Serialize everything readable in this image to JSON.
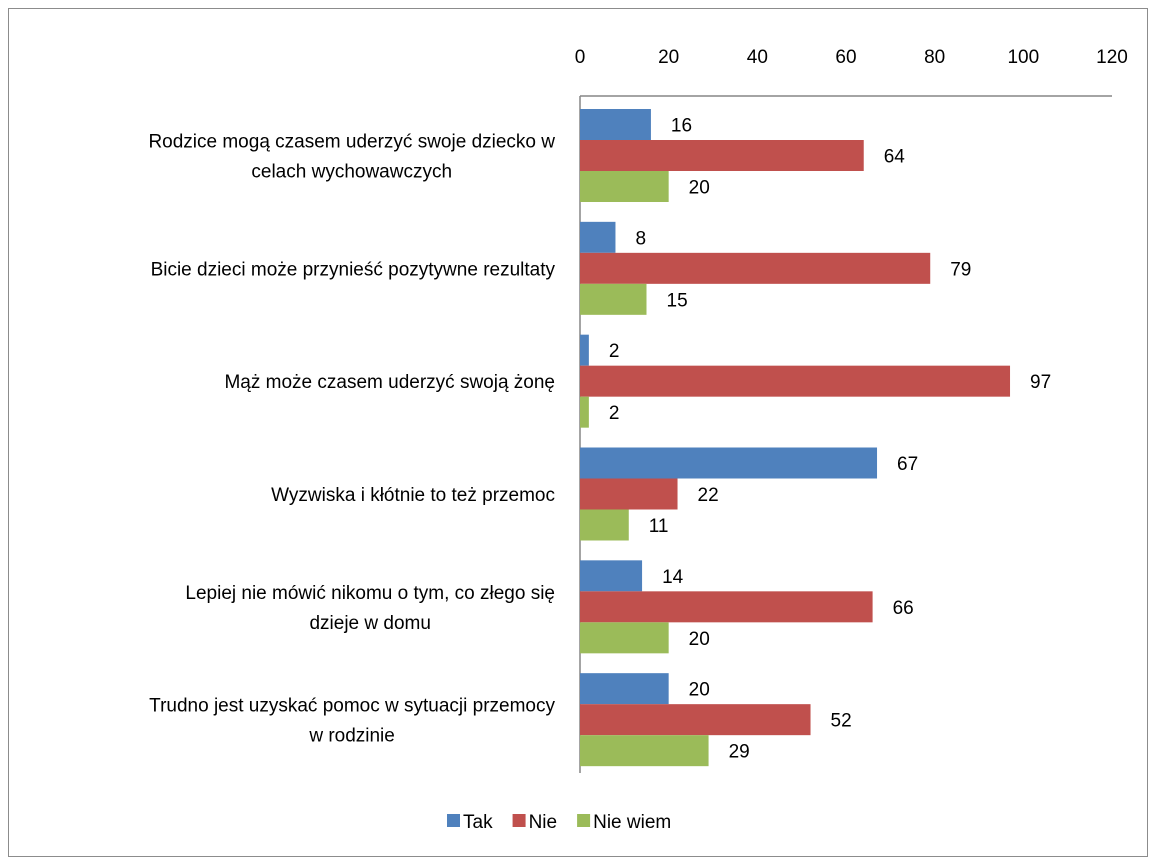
{
  "chart_data": {
    "type": "bar",
    "orientation": "horizontal",
    "title": "",
    "xlabel": "",
    "ylabel": "",
    "xlim": [
      0,
      120
    ],
    "ticks": [
      0,
      20,
      40,
      60,
      80,
      100,
      120
    ],
    "tick_labels": [
      "0",
      "20",
      "40",
      "60",
      "80",
      "100",
      "120"
    ],
    "x_axis_position": "top",
    "grid": false,
    "legend_position": "bottom",
    "categories": [
      [
        "Rodzice mogą czasem uderzyć swoje dziecko w",
        "celach wychowawczych"
      ],
      [
        "Bicie dzieci może przynieść pozytywne rezultaty"
      ],
      [
        "Mąż może czasem uderzyć swoją żonę"
      ],
      [
        "Wyzwiska i kłótnie to też przemoc"
      ],
      [
        "Lepiej nie mówić nikomu o tym, co złego się",
        "dzieje w domu"
      ],
      [
        "Trudno jest uzyskać pomoc w sytuacji przemocy",
        "w rodzinie"
      ]
    ],
    "series": [
      {
        "name": "Tak",
        "color": "#4f81bd",
        "values": [
          16,
          8,
          2,
          67,
          14,
          20
        ]
      },
      {
        "name": "Nie",
        "color": "#c0504d",
        "values": [
          64,
          79,
          97,
          22,
          66,
          52
        ]
      },
      {
        "name": "Nie wiem",
        "color": "#9bbb59",
        "values": [
          20,
          15,
          2,
          11,
          20,
          29
        ]
      }
    ]
  }
}
